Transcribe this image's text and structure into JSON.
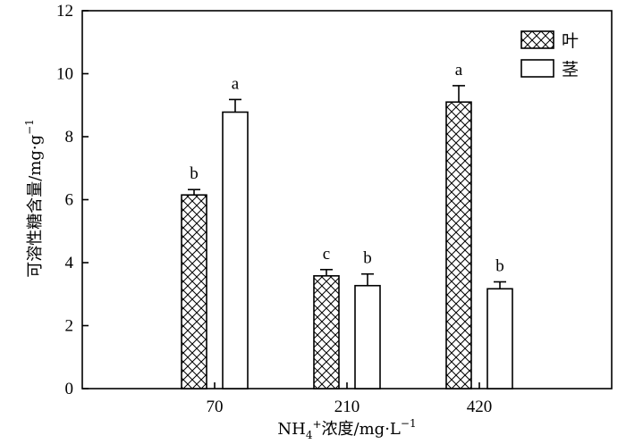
{
  "chart_data": {
    "type": "bar",
    "categories": [
      "70",
      "210",
      "420"
    ],
    "series": [
      {
        "name": "叶",
        "values": [
          6.15,
          3.58,
          9.1
        ],
        "errors": [
          0.17,
          0.2,
          0.52
        ],
        "letters": [
          "b",
          "c",
          "a"
        ],
        "pattern": "crosshatch"
      },
      {
        "name": "茎",
        "values": [
          8.78,
          3.27,
          3.17
        ],
        "errors": [
          0.4,
          0.37,
          0.22
        ],
        "letters": [
          "a",
          "b",
          "b"
        ],
        "pattern": "white"
      }
    ],
    "y_ticks": [
      "0",
      "2",
      "4",
      "6",
      "8",
      "10",
      "12"
    ],
    "ylim": [
      0,
      12
    ],
    "xlabel": {
      "prefix": "NH",
      "sub": "4",
      "sup": "+",
      "rest": "浓度/mg·L",
      "exp": "−1"
    },
    "ylabel": {
      "main": "可溶性糖含量/mg·g",
      "exp": "−1"
    },
    "legend_position": "top-right",
    "grid": false
  }
}
